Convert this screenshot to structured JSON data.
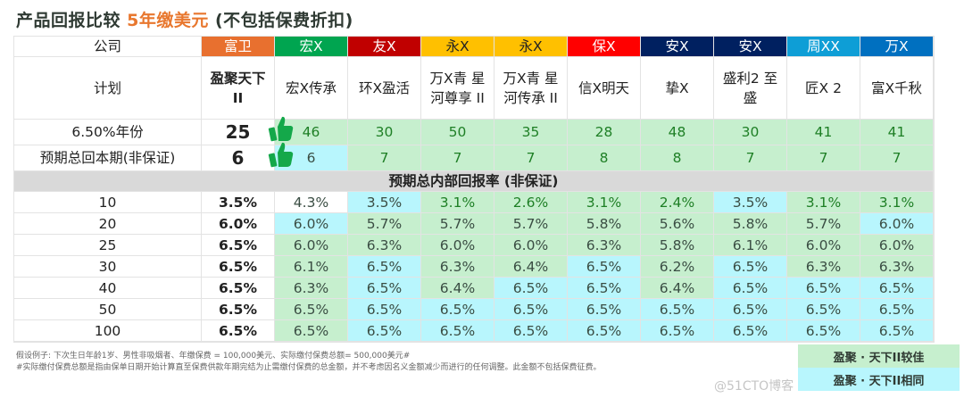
{
  "title": {
    "prefix": "产品回报比较 ",
    "highlight": "5年缴美元",
    "suffix": " (不包括保费折扣)"
  },
  "colors": {
    "green_cell": "#c6efce",
    "blue_cell": "#b8f6fd",
    "highlight": "#e8772e",
    "green_text": "#1e7f25"
  },
  "labels": {
    "company": "公司",
    "plan": "计划",
    "breakeven_650": "6.50%年份",
    "payback": "预期总回本期(非保证)",
    "section": "预期总内部回报率 (非保证)"
  },
  "companies": [
    {
      "name": "富卫",
      "color": "#e8702f",
      "plan": "盈聚天下 II",
      "y650": "25",
      "payback": "6"
    },
    {
      "name": "宏X",
      "color": "#00a550",
      "plan": "宏X传承",
      "y650": "46",
      "payback": "6"
    },
    {
      "name": "友X",
      "color": "#c00000",
      "plan": "环X盈活",
      "y650": "30",
      "payback": "7"
    },
    {
      "name": "永X",
      "color": "#ffc000",
      "plan": "万X青 星河尊享 II",
      "y650": "50",
      "payback": "7"
    },
    {
      "name": "永X",
      "color": "#ffc000",
      "plan": "万X青 星河传承 II",
      "y650": "35",
      "payback": "7"
    },
    {
      "name": "保X",
      "color": "#ff0000",
      "plan": "信X明天",
      "y650": "28",
      "payback": "8"
    },
    {
      "name": "安X",
      "color": "#002060",
      "plan": "挚X",
      "y650": "48",
      "payback": "8"
    },
    {
      "name": "安X",
      "color": "#002060",
      "plan": "盛利2 至盛",
      "y650": "30",
      "payback": "7"
    },
    {
      "name": "周XX",
      "color": "#0e9ed6",
      "plan": "匠X 2",
      "y650": "41",
      "payback": "7"
    },
    {
      "name": "万X",
      "color": "#0070c0",
      "plan": "富X千秋",
      "y650": "41",
      "payback": "7"
    }
  ],
  "top_fill": {
    "y650": [
      "g",
      "g",
      "g",
      "g",
      "g",
      "g",
      "g",
      "g",
      "g"
    ],
    "payback": [
      "b",
      "g",
      "g",
      "g",
      "g",
      "g",
      "g",
      "g",
      "g"
    ]
  },
  "irr_rows": [
    {
      "year": "10",
      "values": [
        "3.5%",
        "4.3%",
        "3.5%",
        "3.1%",
        "2.6%",
        "3.1%",
        "2.4%",
        "3.5%",
        "3.1%",
        "3.1%"
      ],
      "fill": [
        "w",
        "b",
        "g",
        "g",
        "g",
        "g",
        "b",
        "g",
        "g"
      ]
    },
    {
      "year": "20",
      "values": [
        "6.0%",
        "6.0%",
        "5.7%",
        "5.7%",
        "5.7%",
        "5.8%",
        "5.6%",
        "5.8%",
        "5.7%",
        "6.0%"
      ],
      "fill": [
        "b",
        "g",
        "g",
        "g",
        "g",
        "g",
        "g",
        "g",
        "b"
      ]
    },
    {
      "year": "25",
      "values": [
        "6.5%",
        "6.0%",
        "6.3%",
        "6.0%",
        "6.0%",
        "6.3%",
        "5.8%",
        "6.1%",
        "6.0%",
        "6.0%"
      ],
      "fill": [
        "g",
        "g",
        "g",
        "g",
        "g",
        "g",
        "g",
        "g",
        "g"
      ]
    },
    {
      "year": "30",
      "values": [
        "6.5%",
        "6.1%",
        "6.5%",
        "6.3%",
        "6.4%",
        "6.5%",
        "6.2%",
        "6.5%",
        "6.3%",
        "6.3%"
      ],
      "fill": [
        "g",
        "b",
        "g",
        "g",
        "b",
        "g",
        "b",
        "g",
        "g"
      ]
    },
    {
      "year": "40",
      "values": [
        "6.5%",
        "6.3%",
        "6.5%",
        "6.4%",
        "6.5%",
        "6.5%",
        "6.4%",
        "6.5%",
        "6.5%",
        "6.5%"
      ],
      "fill": [
        "g",
        "b",
        "g",
        "b",
        "b",
        "g",
        "b",
        "b",
        "b"
      ]
    },
    {
      "year": "50",
      "values": [
        "6.5%",
        "6.5%",
        "6.5%",
        "6.5%",
        "6.5%",
        "6.5%",
        "6.5%",
        "6.5%",
        "6.5%",
        "6.5%"
      ],
      "fill": [
        "g",
        "b",
        "b",
        "b",
        "b",
        "b",
        "b",
        "b",
        "b"
      ]
    },
    {
      "year": "100",
      "values": [
        "6.5%",
        "6.5%",
        "6.5%",
        "6.5%",
        "6.5%",
        "6.5%",
        "6.5%",
        "6.5%",
        "6.5%",
        "6.5%"
      ],
      "fill": [
        "g",
        "b",
        "b",
        "b",
        "b",
        "b",
        "b",
        "b",
        "b"
      ]
    }
  ],
  "footnotes": [
    "假设例子: 下次生日年龄1岁、男性非吸烟者、年缴保费 = 100,000美元、实际缴付保费总额= 500,000美元#",
    "#实际缴付保费总额是指由保单日期开始计算直至保费供款年期完结为止需缴付保费的总金额，并不考虑因名义金额减少而进行的任何调整。此金额不包括保费征费。"
  ],
  "legend": {
    "better": "盈聚 · 天下II较佳",
    "same": "盈聚 · 天下II相同"
  },
  "watermark": "@51CTO博客"
}
